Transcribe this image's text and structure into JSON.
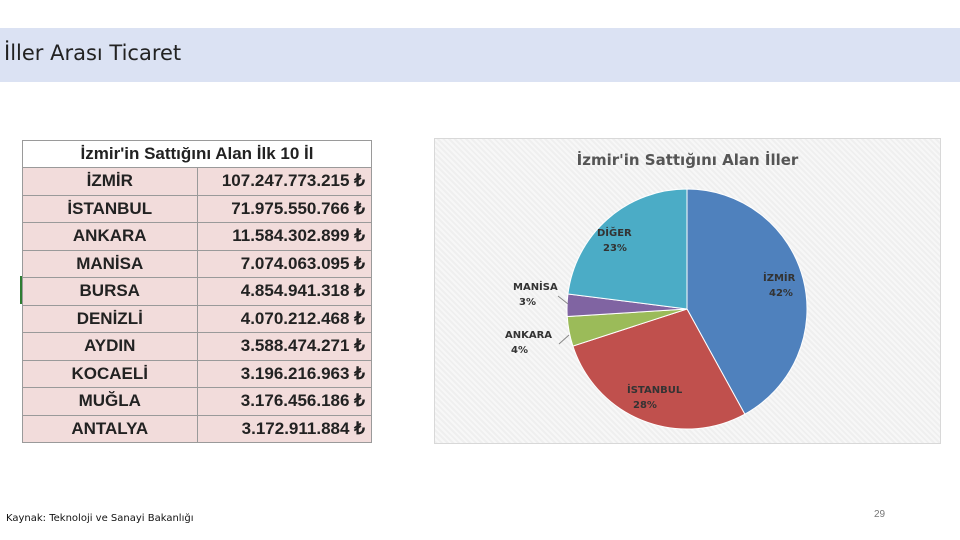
{
  "header": {
    "title": "İller Arası Ticaret"
  },
  "table": {
    "title": "İzmir'in Sattığını Alan İlk 10 İl",
    "rows": [
      {
        "city": "İZMİR",
        "value": "107.247.773.215 ₺"
      },
      {
        "city": "İSTANBUL",
        "value": "71.975.550.766 ₺"
      },
      {
        "city": "ANKARA",
        "value": "11.584.302.899 ₺"
      },
      {
        "city": "MANİSA",
        "value": "7.074.063.095 ₺"
      },
      {
        "city": "BURSA",
        "value": "4.854.941.318 ₺"
      },
      {
        "city": "DENİZLİ",
        "value": "4.070.212.468 ₺"
      },
      {
        "city": "AYDIN",
        "value": "3.588.474.271 ₺"
      },
      {
        "city": "KOCAELİ",
        "value": "3.196.216.963 ₺"
      },
      {
        "city": "MUĞLA",
        "value": "3.176.456.186 ₺"
      },
      {
        "city": "ANTALYA",
        "value": "3.172.911.884 ₺"
      }
    ]
  },
  "chart_data": {
    "type": "pie",
    "title": "İzmir'in Sattığını Alan İller",
    "slices": [
      {
        "label": "İZMİR",
        "value": 42,
        "value_label": "42%",
        "color": "#4f81bd"
      },
      {
        "label": "İSTANBUL",
        "value": 28,
        "value_label": "28%",
        "color": "#c0504d"
      },
      {
        "label": "ANKARA",
        "value": 4,
        "value_label": "4%",
        "color": "#9bbb59"
      },
      {
        "label": "MANİSA",
        "value": 3,
        "value_label": "3%",
        "color": "#8064a2"
      },
      {
        "label": "DİĞER",
        "value": 23,
        "value_label": "23%",
        "color": "#4bacc6"
      }
    ]
  },
  "footer": {
    "source": "Kaynak: Teknoloji ve Sanayi Bakanlığı",
    "page": "29"
  }
}
